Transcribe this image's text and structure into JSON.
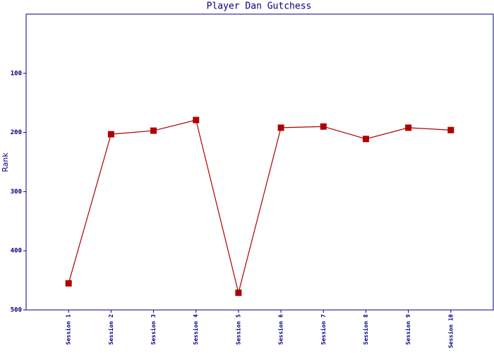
{
  "chart_data": {
    "type": "line",
    "title": "Player Dan Gutchess",
    "ylabel": "Rank",
    "categories": [
      "Session 1",
      "Session 2",
      "Session 3",
      "Session 4",
      "Session 5",
      "Session 6",
      "Session 7",
      "Session 8",
      "Session 9",
      "Session 10"
    ],
    "series": [
      {
        "name": "Rank",
        "color": "#b00000",
        "values": [
          455,
          203,
          197,
          179,
          471,
          192,
          190,
          211,
          192,
          196
        ]
      }
    ],
    "ylim": [
      0,
      500
    ],
    "yticks": [
      100,
      200,
      300,
      400,
      500
    ],
    "y_inverted": true,
    "legend": false
  }
}
